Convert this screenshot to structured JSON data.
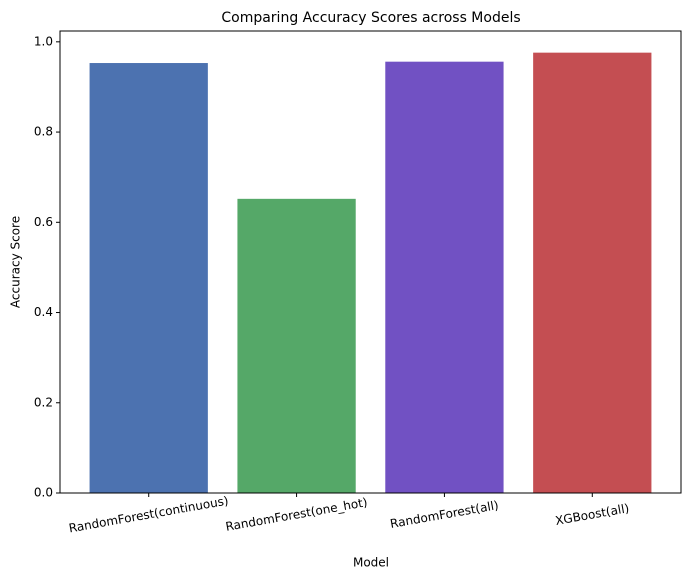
{
  "chart_data": {
    "type": "bar",
    "title": "Comparing Accuracy Scores across Models",
    "x_label": "Model",
    "y_label": "Accuracy Score",
    "categories": [
      "RandomForest(continuous)",
      "RandomForest(one_hot)",
      "RandomForest(all)",
      "XGBoost(all)"
    ],
    "values": [
      0.953,
      0.652,
      0.956,
      0.976
    ],
    "colors": [
      "#4c72b0",
      "#55a868",
      "#7151c3",
      "#c44e52"
    ],
    "ylim": [
      0,
      1.024
    ],
    "yticks": [
      {
        "value": 0,
        "label": "0.0"
      },
      {
        "value": 0.2,
        "label": "0.2"
      },
      {
        "value": 0.4,
        "label": "0.4"
      },
      {
        "value": 0.6,
        "label": "0.6"
      },
      {
        "value": 0.8,
        "label": "0.8"
      },
      {
        "value": 1,
        "label": "1.0"
      }
    ]
  }
}
